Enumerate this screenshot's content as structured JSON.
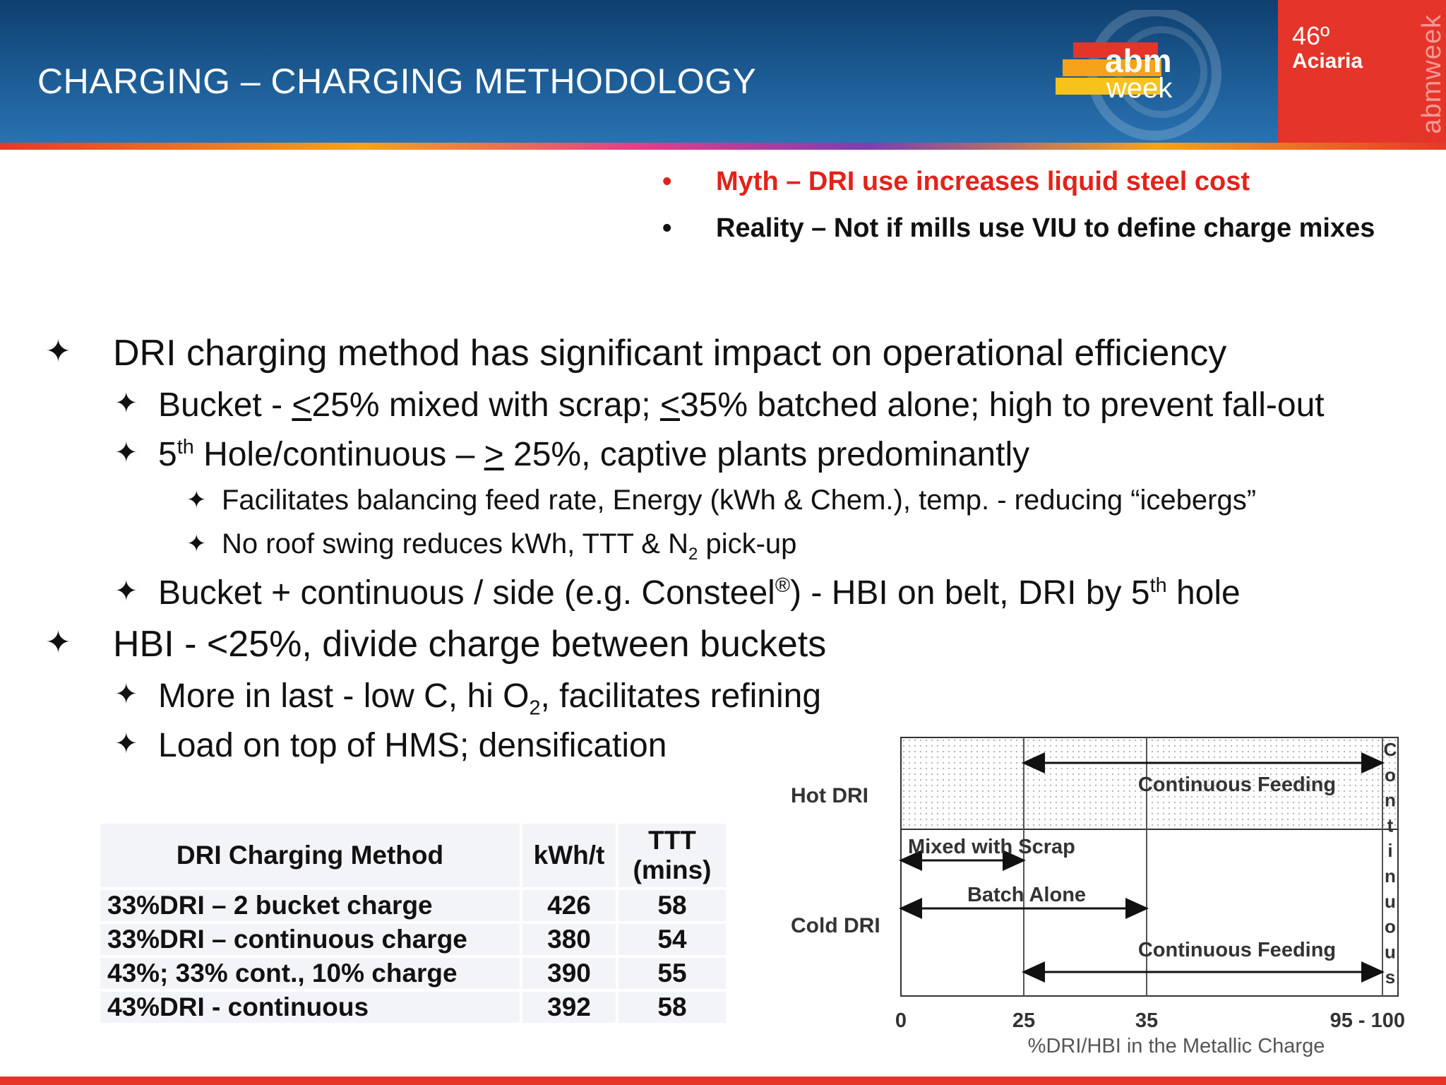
{
  "header": {
    "title": "CHARGING – CHARGING METHODOLOGY",
    "logo_text_1": "abm",
    "logo_text_2": "week",
    "event_number": "46º",
    "event_name": "Aciaria",
    "vertical_text": "abmweek"
  },
  "myth_reality": {
    "bullet": "•",
    "myth": "Myth – DRI use increases liquid steel cost",
    "reality": "Reality – Not if mills use VIU to define charge mixes"
  },
  "bullets": {
    "star": "✦",
    "b1": "DRI charging method has significant impact on operational efficiency",
    "b1_1_pre": "Bucket - ",
    "b1_1_u1": "<",
    "b1_1_mid": "25% mixed with scrap; ",
    "b1_1_u2": "<",
    "b1_1_post": "35% batched alone; high to prevent fall-out",
    "b1_2_pre": "5",
    "b1_2_sup": "th",
    "b1_2_mid": " Hole/continuous – ",
    "b1_2_u": ">",
    "b1_2_post": " 25%,  captive plants predominantly",
    "b1_2_1": "Facilitates balancing feed rate, Energy (kWh & Chem.), temp. - reducing “icebergs”",
    "b1_2_2_pre": "No roof swing reduces kWh, TTT & N",
    "b1_2_2_sub": "2",
    "b1_2_2_post": " pick-up",
    "b1_3_pre": "Bucket + continuous / side (e.g. Consteel",
    "b1_3_sup": "®",
    "b1_3_mid": ") - HBI on belt, DRI by 5",
    "b1_3_sup2": "th",
    "b1_3_post": " hole",
    "b2": "HBI - <25%, divide charge between buckets",
    "b2_1_pre": "More in last - low C, hi O",
    "b2_1_sub": "2",
    "b2_1_post": ", facilitates refining",
    "b2_2": "Load on top of HMS; densification"
  },
  "table": {
    "headers": [
      "DRI Charging Method",
      "kWh/t",
      "TTT",
      "(mins)"
    ],
    "rows": [
      {
        "method": "33%DRI – 2 bucket charge",
        "kwh": "426",
        "ttt": "58"
      },
      {
        "method": "33%DRI – continuous charge",
        "kwh": "380",
        "ttt": "54"
      },
      {
        "method": "43%; 33% cont., 10%  charge",
        "kwh": "390",
        "ttt": "55"
      },
      {
        "method": "43%DRI - continuous",
        "kwh": "392",
        "ttt": "58"
      }
    ]
  },
  "chart_data": {
    "type": "diagram",
    "row_labels": [
      "Hot DRI",
      "Cold DRI"
    ],
    "x_ticks": [
      "0",
      "25",
      "35",
      "95 - 100"
    ],
    "xlabel": "%DRI/HBI in the Metallic Charge",
    "ranges": [
      {
        "label": "Continuous Feeding",
        "row": "Hot DRI",
        "from": 25,
        "to": 100
      },
      {
        "label": "Mixed with Scrap",
        "row": "Cold DRI",
        "from": 0,
        "to": 25
      },
      {
        "label": "Batch Alone",
        "row": "Cold DRI",
        "from": 0,
        "to": 35
      },
      {
        "label": "Continuous Feeding",
        "row": "Cold DRI",
        "from": 25,
        "to": 100
      }
    ],
    "right_vertical_label": "Continuous"
  }
}
